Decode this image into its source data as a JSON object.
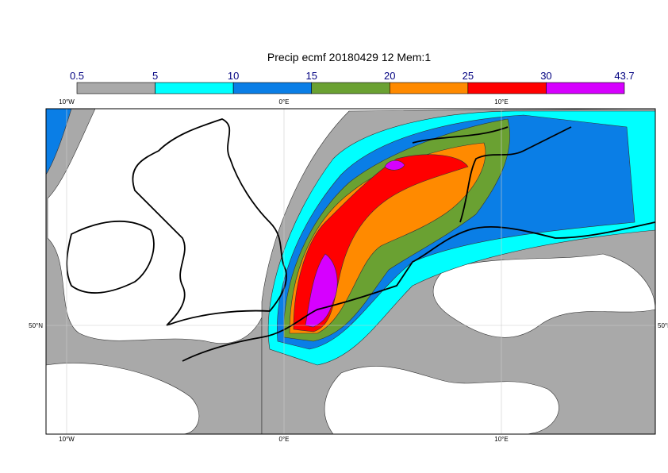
{
  "title": "Precip ecmf 20180429 12 Mem:1",
  "colorbar": {
    "levels": [
      0.5,
      5,
      10,
      15,
      20,
      25,
      30,
      43.7
    ],
    "colors": [
      "#a9a9a9",
      "#00ffff",
      "#0a7ee6",
      "#6aa132",
      "#ff8a00",
      "#ff0000",
      "#d600ff"
    ]
  },
  "map": {
    "lon_labels": [
      "10°W",
      "0°E",
      "10°E"
    ],
    "lat_labels": [
      "50°N"
    ]
  }
}
